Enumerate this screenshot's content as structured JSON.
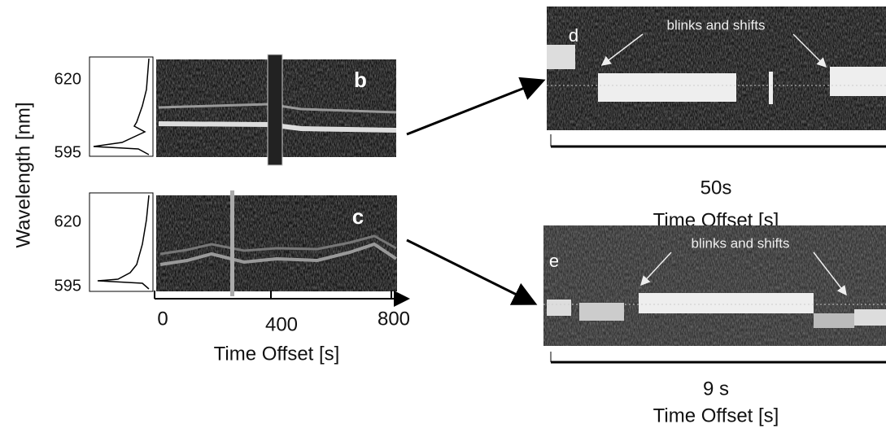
{
  "y_axis": {
    "label": "Wavelength [nm]"
  },
  "panels": [
    {
      "label": "b",
      "yticks": [
        620,
        595
      ]
    },
    {
      "label": "c",
      "yticks": [
        620,
        595
      ]
    }
  ],
  "x_axis": {
    "ticks": [
      0,
      400,
      800
    ],
    "label": "Time Offset [s]"
  },
  "zooms": [
    {
      "label": "d",
      "annotation": "blinks and shifts",
      "scale": "50s",
      "axis_label": "Time Offset [s]"
    },
    {
      "label": "e",
      "annotation": "blinks and shifts",
      "scale": "9 s",
      "axis_label": "Time Offset [s]"
    }
  ]
}
